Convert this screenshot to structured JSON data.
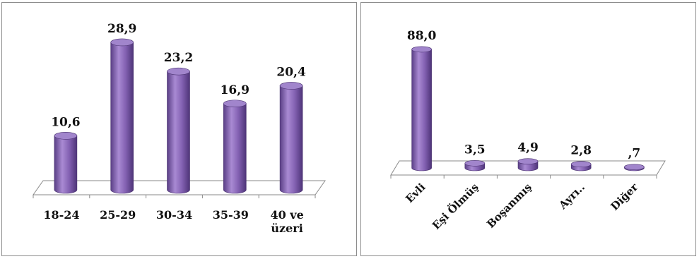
{
  "chart_data": [
    {
      "type": "bar",
      "style": "3d-cylinder",
      "categories": [
        "18-24",
        "25-29",
        "30-34",
        "35-39",
        [
          "40 ve",
          "üzeri"
        ]
      ],
      "values": [
        10.6,
        28.9,
        23.2,
        16.9,
        20.4
      ],
      "value_labels": [
        "10,6",
        "28,9",
        "23,2",
        "16,9",
        "20,4"
      ],
      "title": "",
      "xlabel": "",
      "ylabel": "",
      "ylim": [
        0,
        30
      ],
      "grid": false,
      "legend": "none",
      "bar_color": "#8b6bb6"
    },
    {
      "type": "bar",
      "style": "3d-cylinder",
      "categories": [
        "Evli",
        "Eşi Ölmüş",
        "Boşanmış",
        "Ayrı..",
        "Diğer"
      ],
      "values": [
        88.0,
        3.5,
        4.9,
        2.8,
        0.7
      ],
      "value_labels": [
        "88,0",
        "3,5",
        "4,9",
        "2,8",
        ",7"
      ],
      "title": "",
      "xlabel": "",
      "ylabel": "",
      "ylim": [
        0,
        100
      ],
      "grid": false,
      "legend": "none",
      "bar_color": "#8b6bb6"
    }
  ]
}
